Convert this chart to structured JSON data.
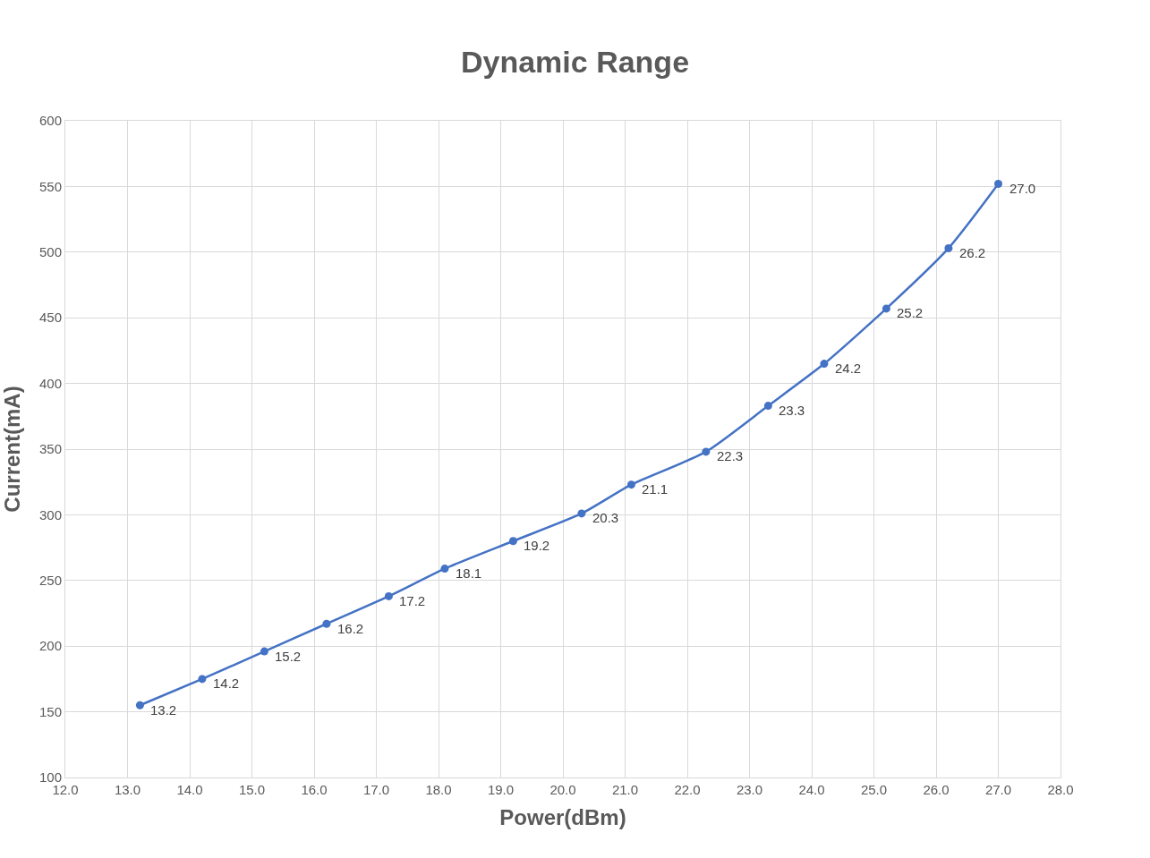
{
  "chart_data": {
    "type": "line",
    "title": "Dynamic Range",
    "xlabel": "Power(dBm)",
    "ylabel": "Current(mA)",
    "x": [
      13.2,
      14.2,
      15.2,
      16.2,
      17.2,
      18.1,
      19.2,
      20.3,
      21.1,
      22.3,
      23.3,
      24.2,
      25.2,
      26.2,
      27.0
    ],
    "series": [
      {
        "color": "#4472c4",
        "values": [
          155,
          175,
          196,
          217,
          238,
          259,
          280,
          301,
          323,
          348,
          383,
          415,
          457,
          503,
          552
        ]
      }
    ],
    "annotations": [
      {
        "text": "13.2",
        "x": 13.2,
        "y": 155
      },
      {
        "text": "14.2",
        "x": 14.2,
        "y": 175
      },
      {
        "text": "15.2",
        "x": 15.2,
        "y": 196
      },
      {
        "text": "16.2",
        "x": 16.2,
        "y": 217
      },
      {
        "text": "17.2",
        "x": 17.2,
        "y": 238
      },
      {
        "text": "18.1",
        "x": 18.1,
        "y": 259
      },
      {
        "text": "19.2",
        "x": 19.2,
        "y": 280
      },
      {
        "text": "20.3",
        "x": 20.3,
        "y": 301
      },
      {
        "text": "21.1",
        "x": 21.1,
        "y": 323
      },
      {
        "text": "22.3",
        "x": 22.3,
        "y": 348
      },
      {
        "text": "23.3",
        "x": 23.3,
        "y": 383
      },
      {
        "text": "24.2",
        "x": 24.2,
        "y": 415
      },
      {
        "text": "25.2",
        "x": 25.2,
        "y": 457
      },
      {
        "text": "26.2",
        "x": 26.2,
        "y": 503
      },
      {
        "text": "27.0",
        "x": 27.0,
        "y": 552
      }
    ],
    "xlim": [
      12,
      28
    ],
    "xticks": [
      {
        "value": 12,
        "label": "12.0"
      },
      {
        "value": 13,
        "label": "13.0"
      },
      {
        "value": 14,
        "label": "14.0"
      },
      {
        "value": 15,
        "label": "15.0"
      },
      {
        "value": 16,
        "label": "16.0"
      },
      {
        "value": 17,
        "label": "17.0"
      },
      {
        "value": 18,
        "label": "18.0"
      },
      {
        "value": 19,
        "label": "19.0"
      },
      {
        "value": 20,
        "label": "20.0"
      },
      {
        "value": 21,
        "label": "21.0"
      },
      {
        "value": 22,
        "label": "22.0"
      },
      {
        "value": 23,
        "label": "23.0"
      },
      {
        "value": 24,
        "label": "24.0"
      },
      {
        "value": 25,
        "label": "25.0"
      },
      {
        "value": 26,
        "label": "26.0"
      },
      {
        "value": 27,
        "label": "27.0"
      },
      {
        "value": 28,
        "label": "28.0"
      }
    ],
    "ylim": [
      100,
      600
    ],
    "yticks": [
      100,
      150,
      200,
      250,
      300,
      350,
      400,
      450,
      500,
      550,
      600
    ],
    "grid": true,
    "marker": "circle",
    "line_style": "solid",
    "legend": false
  }
}
